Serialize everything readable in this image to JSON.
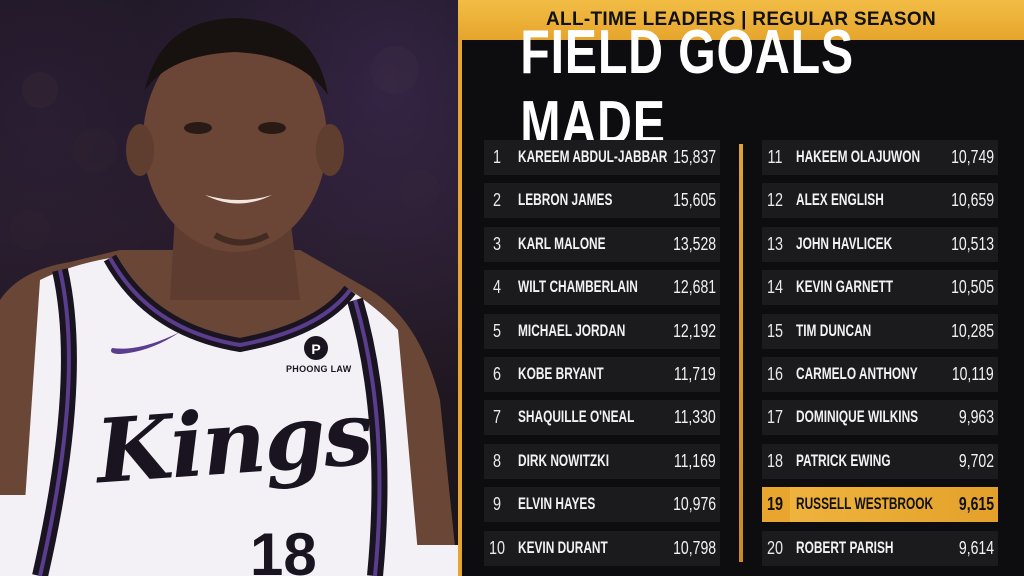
{
  "banner": "ALL-TIME LEADERS | REGULAR SEASON",
  "title": "FIELD GOALS MADE",
  "jersey": {
    "team": "Kings",
    "number": "18",
    "sponsor": "PHOONG LAW"
  },
  "colors": {
    "gold": "#e6a52c",
    "row_bg": "#1b1b1e",
    "board_bg": "#0d0d0f",
    "jersey_trim": "#5a3d8c"
  },
  "leaders_left": [
    {
      "rank": "1",
      "name": "KAREEM ABDUL-JABBAR",
      "value": "15,837"
    },
    {
      "rank": "2",
      "name": "LEBRON JAMES",
      "value": "15,605"
    },
    {
      "rank": "3",
      "name": "KARL MALONE",
      "value": "13,528"
    },
    {
      "rank": "4",
      "name": "WILT CHAMBERLAIN",
      "value": "12,681"
    },
    {
      "rank": "5",
      "name": "MICHAEL JORDAN",
      "value": "12,192"
    },
    {
      "rank": "6",
      "name": "KOBE BRYANT",
      "value": "11,719"
    },
    {
      "rank": "7",
      "name": "SHAQUILLE O'NEAL",
      "value": "11,330"
    },
    {
      "rank": "8",
      "name": "DIRK NOWITZKI",
      "value": "11,169"
    },
    {
      "rank": "9",
      "name": "ELVIN HAYES",
      "value": "10,976"
    },
    {
      "rank": "10",
      "name": "KEVIN DURANT",
      "value": "10,798"
    }
  ],
  "leaders_right": [
    {
      "rank": "11",
      "name": "HAKEEM OLAJUWON",
      "value": "10,749"
    },
    {
      "rank": "12",
      "name": "ALEX ENGLISH",
      "value": "10,659"
    },
    {
      "rank": "13",
      "name": "JOHN HAVLICEK",
      "value": "10,513"
    },
    {
      "rank": "14",
      "name": "KEVIN GARNETT",
      "value": "10,505"
    },
    {
      "rank": "15",
      "name": "TIM DUNCAN",
      "value": "10,285"
    },
    {
      "rank": "16",
      "name": "CARMELO ANTHONY",
      "value": "10,119"
    },
    {
      "rank": "17",
      "name": "DOMINIQUE WILKINS",
      "value": "9,963"
    },
    {
      "rank": "18",
      "name": "PATRICK EWING",
      "value": "9,702"
    },
    {
      "rank": "19",
      "name": "RUSSELL WESTBROOK",
      "value": "9,615",
      "highlight": true
    },
    {
      "rank": "20",
      "name": "ROBERT PARISH",
      "value": "9,614"
    }
  ]
}
